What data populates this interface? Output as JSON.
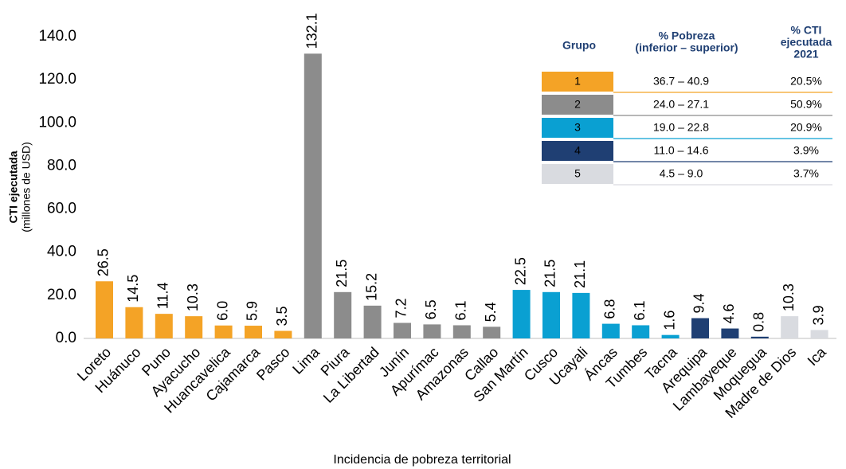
{
  "chart_data": {
    "type": "bar",
    "y_label": "CTI ejecutada",
    "y_label_units": "(millones de USD)",
    "x_label": "Incidencia de pobreza territorial",
    "categories": [
      "Loreto",
      "Huánuco",
      "Puno",
      "Ayacucho",
      "Huancavelica",
      "Cajamarca",
      "Pasco",
      "Lima",
      "Piura",
      "La Libertad",
      "Junín",
      "Apurímac",
      "Amazonas",
      "Callao",
      "San Martín",
      "Cusco",
      "Ucayali",
      "Áncas",
      "Tumbes",
      "Tacna",
      "Arequipa",
      "Lambayeque",
      "Moquegua",
      "Madre de Dios",
      "Ica"
    ],
    "values": [
      26.5,
      14.5,
      11.4,
      10.3,
      6.0,
      5.9,
      3.5,
      132.1,
      21.5,
      15.2,
      7.2,
      6.5,
      6.1,
      5.4,
      22.5,
      21.5,
      21.1,
      6.8,
      6.1,
      1.6,
      9.4,
      4.6,
      0.8,
      10.3,
      3.9
    ],
    "value_labels": [
      "26.5",
      "14.5",
      "11.4",
      "10.3",
      "6.0",
      "5.9",
      "3.5",
      "132.1",
      "21.5",
      "15.2",
      "7.2",
      "6.5",
      "6.1",
      "5.4",
      "22.5",
      "21.5",
      "21.1",
      "6.8",
      "6.1",
      "1.6",
      "9.4",
      "4.6",
      "0.8",
      "10.3",
      "3.9"
    ],
    "colors": [
      "#f4a326",
      "#f4a326",
      "#f4a326",
      "#f4a326",
      "#f4a326",
      "#f4a326",
      "#f4a326",
      "#8c8c8c",
      "#8c8c8c",
      "#8c8c8c",
      "#8c8c8c",
      "#8c8c8c",
      "#8c8c8c",
      "#8c8c8c",
      "#0aa0d2",
      "#0aa0d2",
      "#0aa0d2",
      "#0aa0d2",
      "#0aa0d2",
      "#0aa0d2",
      "#1f3f73",
      "#1f3f73",
      "#1f3f73",
      "#d9dbe0",
      "#d9dbe0"
    ],
    "ylim": [
      0,
      140
    ],
    "yticks": [
      {
        "value": 0,
        "label": "0.0"
      },
      {
        "value": 20,
        "label": "20.0"
      },
      {
        "value": 40,
        "label": "40.0"
      },
      {
        "value": 60,
        "label": "60.0"
      },
      {
        "value": 80,
        "label": "80.0"
      },
      {
        "value": 100,
        "label": "100.0"
      },
      {
        "value": 120,
        "label": "120.0"
      },
      {
        "value": 140,
        "label": "140.0"
      }
    ],
    "legend_table": {
      "headers": [
        "Grupo",
        "% Pobreza",
        "(inferior – superior)",
        "% CTI",
        "ejecutada",
        "2021"
      ],
      "rows": [
        {
          "group": "1",
          "color": "#f4a326",
          "range": "36.7   – 40.9",
          "cti": "20.5%"
        },
        {
          "group": "2",
          "color": "#8c8c8c",
          "range": "24.0   – 27.1",
          "cti": "50.9%"
        },
        {
          "group": "3",
          "color": "#0aa0d2",
          "range": "19.0   – 22.8",
          "cti": "20.9%"
        },
        {
          "group": "4",
          "color": "#1f3f73",
          "range": "11.0   – 14.6",
          "cti": "3.9%"
        },
        {
          "group": "5",
          "color": "#d9dbe0",
          "range": "4.5   – 9.0",
          "cti": "3.7%"
        }
      ]
    }
  }
}
